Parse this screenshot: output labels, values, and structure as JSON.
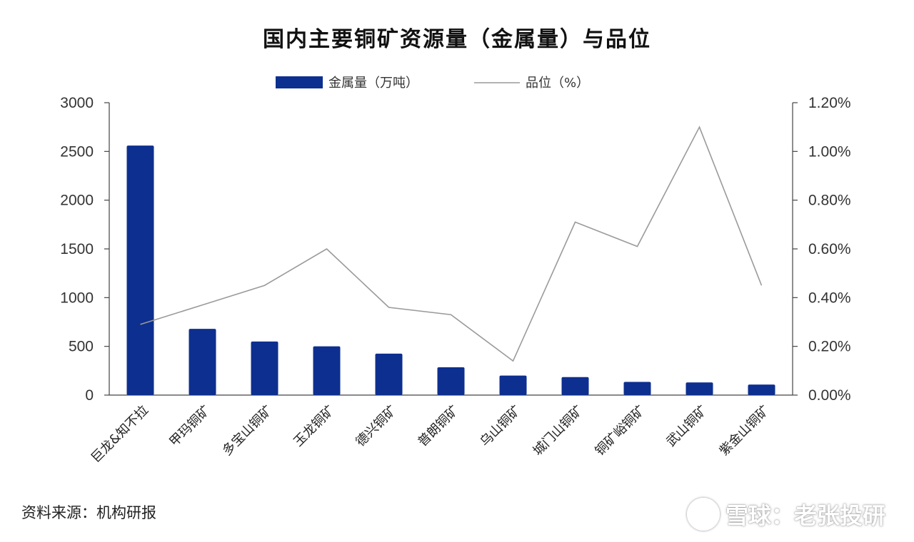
{
  "chart_data": {
    "type": "bar+line",
    "title": "国内主要铜矿资源量（金属量）与品位",
    "categories": [
      "巨龙&知不拉",
      "甲玛铜矿",
      "多宝山铜矿",
      "玉龙铜矿",
      "德兴铜矿",
      "普朗铜矿",
      "乌山铜矿",
      "城门山铜矿",
      "铜矿峪铜矿",
      "武山铜矿",
      "紫金山铜矿"
    ],
    "series": [
      {
        "name": "金属量（万吨）",
        "type": "bar",
        "axis": "left",
        "color": "#0d2f8f",
        "values": [
          2560,
          680,
          550,
          500,
          425,
          285,
          200,
          185,
          135,
          130,
          108
        ]
      },
      {
        "name": "品位（%）",
        "type": "line",
        "axis": "right",
        "color": "#9a9a9a",
        "values": [
          0.29,
          0.37,
          0.45,
          0.6,
          0.36,
          0.33,
          0.14,
          0.71,
          0.61,
          1.1,
          0.45
        ]
      }
    ],
    "y_left": {
      "ylim": [
        0,
        3000
      ],
      "ticks": [
        "0",
        "500",
        "1000",
        "1500",
        "2000",
        "2500",
        "3000"
      ]
    },
    "y_right": {
      "ylim": [
        0,
        1.2
      ],
      "ticks": [
        "0.00%",
        "0.20%",
        "0.40%",
        "0.60%",
        "0.80%",
        "1.00%",
        "1.20%"
      ]
    },
    "legend_position": "top-center",
    "grid": false
  },
  "source": "资料来源：机构研报",
  "watermark": "雪球：老张投研"
}
